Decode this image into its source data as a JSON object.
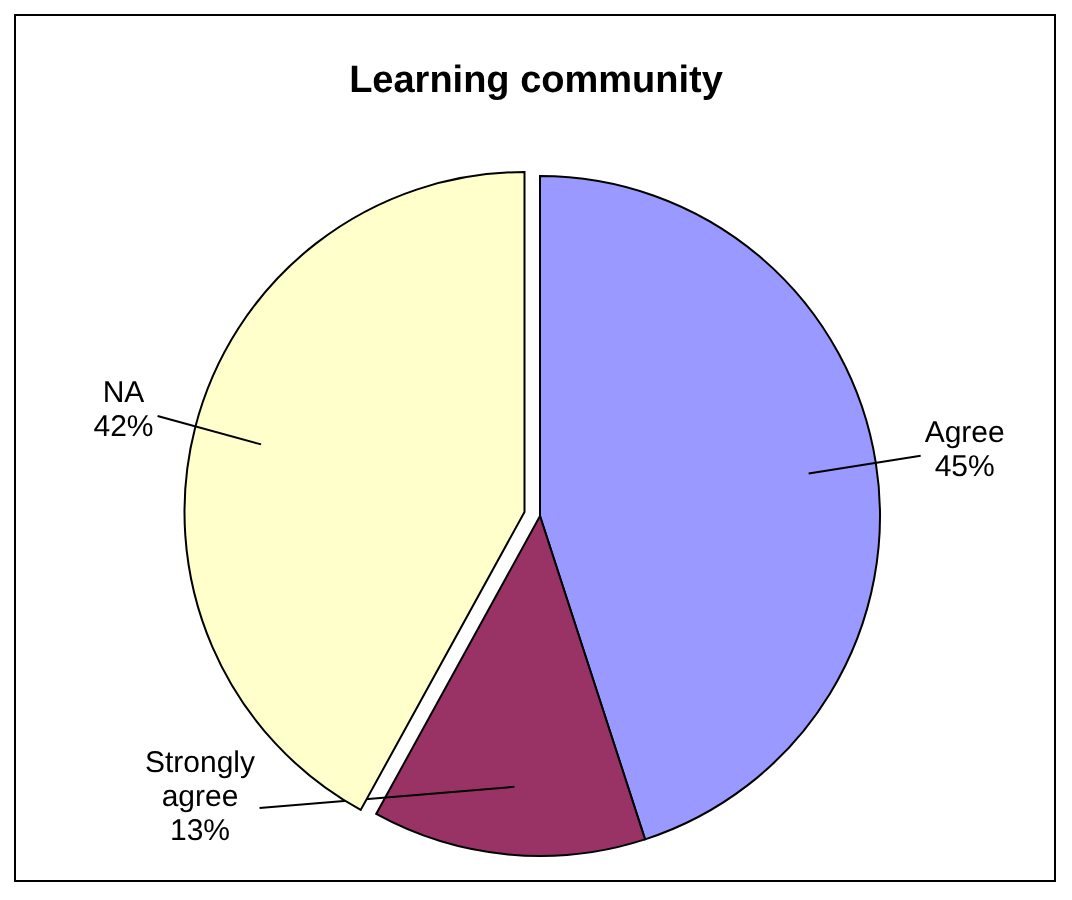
{
  "chart_data": {
    "type": "pie",
    "title": "Learning community",
    "categories": [
      "Agree",
      "Strongly agree",
      "NA"
    ],
    "values": [
      45,
      13,
      42
    ],
    "colors": [
      "#9999ff",
      "#993366",
      "#ffffcc"
    ],
    "value_labels": [
      "45%",
      "13%",
      "42%"
    ]
  }
}
